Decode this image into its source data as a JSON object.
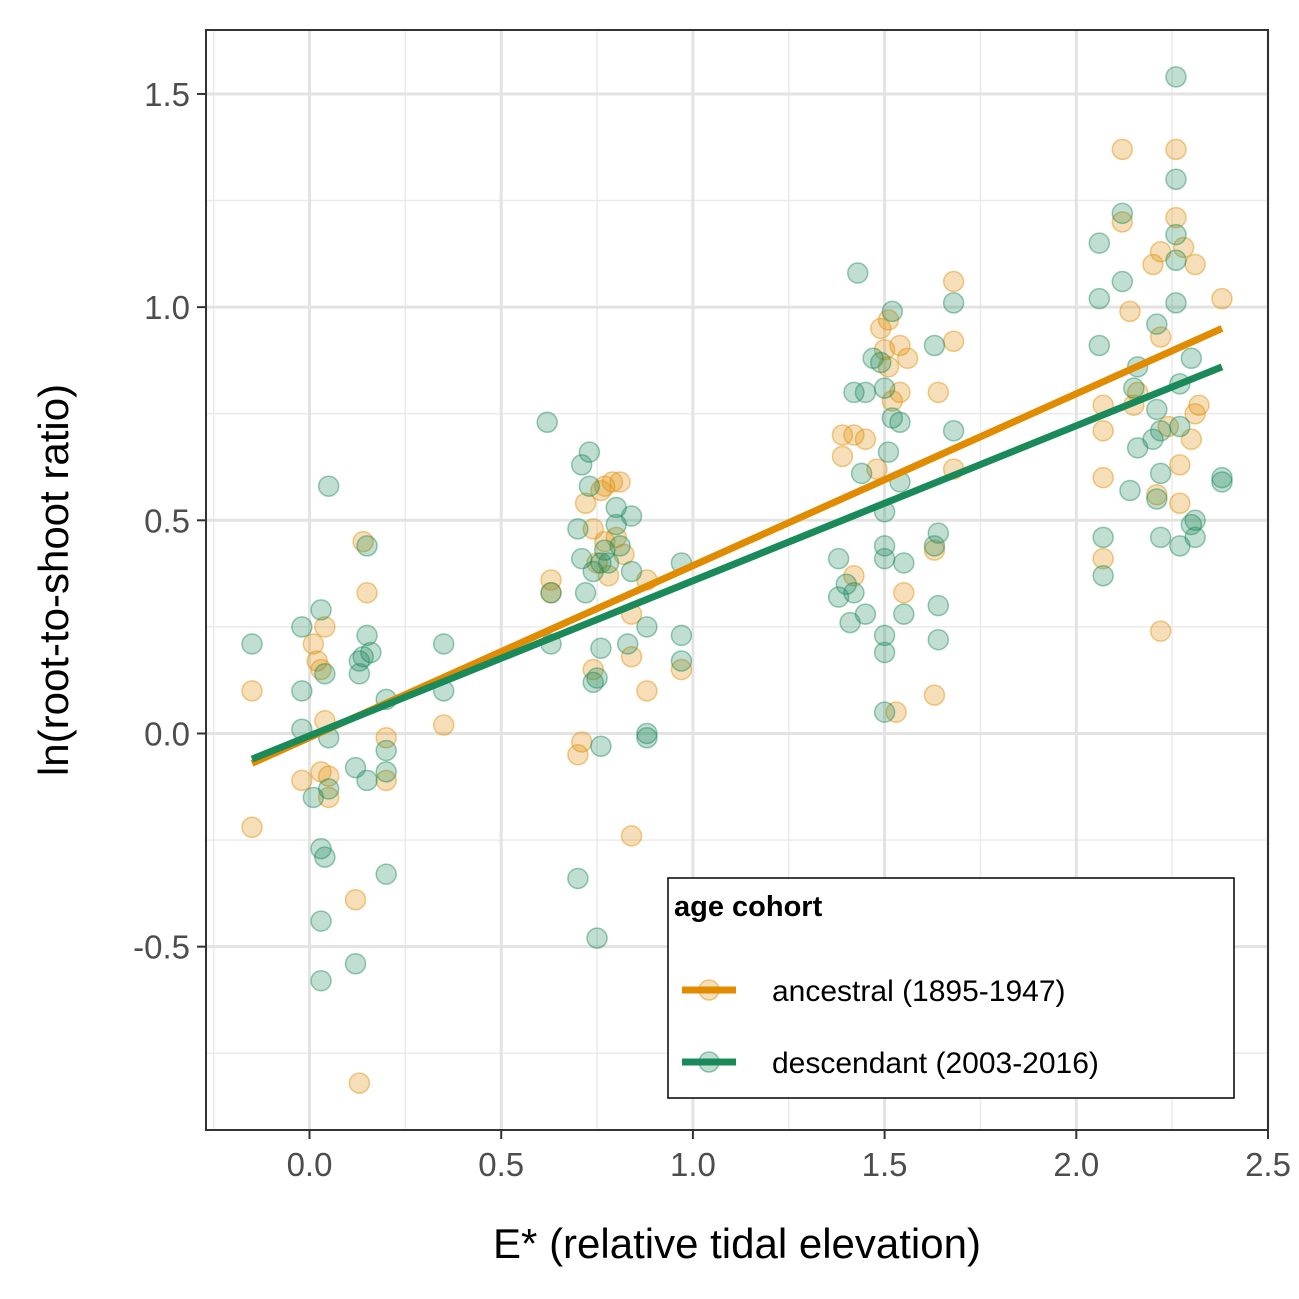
{
  "chart_data": {
    "type": "scatter",
    "title": "",
    "xlabel": "E* (relative tidal elevation)",
    "ylabel": "ln(root-to-shoot ratio)",
    "xlim": [
      -0.27,
      2.5
    ],
    "ylim": [
      -0.93,
      1.65
    ],
    "x_ticks": [
      0.0,
      0.5,
      1.0,
      1.5,
      2.0,
      2.5
    ],
    "x_tick_labels": [
      "0.0",
      "0.5",
      "1.0",
      "1.5",
      "2.0",
      "2.5"
    ],
    "y_ticks": [
      -0.5,
      0.0,
      0.5,
      1.0,
      1.5
    ],
    "y_tick_labels": [
      "-0.5",
      "0.0",
      "0.5",
      "1.0",
      "1.5"
    ],
    "grid": true,
    "legend": {
      "title": "age cohort",
      "position": "bottom-right"
    },
    "series": [
      {
        "name": "ancestral (1895-1947)",
        "color": "#E08B00",
        "fit_line": {
          "x": [
            -0.15,
            2.38
          ],
          "y": [
            -0.07,
            0.95
          ]
        },
        "points": [
          [
            -0.15,
            0.1
          ],
          [
            -0.15,
            -0.22
          ],
          [
            -0.02,
            -0.11
          ],
          [
            0.01,
            0.21
          ],
          [
            0.02,
            0.17
          ],
          [
            0.03,
            0.15
          ],
          [
            0.03,
            -0.09
          ],
          [
            0.04,
            0.03
          ],
          [
            0.04,
            0.25
          ],
          [
            0.05,
            -0.1
          ],
          [
            0.05,
            -0.15
          ],
          [
            0.12,
            -0.39
          ],
          [
            0.13,
            -0.82
          ],
          [
            0.14,
            0.45
          ],
          [
            0.15,
            0.33
          ],
          [
            0.2,
            -0.01
          ],
          [
            0.2,
            -0.11
          ],
          [
            0.35,
            0.02
          ],
          [
            0.63,
            0.33
          ],
          [
            0.63,
            0.36
          ],
          [
            0.7,
            -0.05
          ],
          [
            0.71,
            -0.02
          ],
          [
            0.72,
            0.54
          ],
          [
            0.74,
            0.48
          ],
          [
            0.74,
            0.15
          ],
          [
            0.75,
            0.4
          ],
          [
            0.76,
            0.57
          ],
          [
            0.77,
            0.58
          ],
          [
            0.77,
            0.45
          ],
          [
            0.78,
            0.37
          ],
          [
            0.79,
            0.59
          ],
          [
            0.8,
            0.46
          ],
          [
            0.81,
            0.59
          ],
          [
            0.82,
            0.42
          ],
          [
            0.84,
            0.28
          ],
          [
            0.84,
            -0.24
          ],
          [
            0.84,
            0.18
          ],
          [
            0.88,
            0.1
          ],
          [
            0.88,
            0.36
          ],
          [
            0.97,
            0.15
          ],
          [
            1.39,
            0.7
          ],
          [
            1.39,
            0.65
          ],
          [
            1.42,
            0.7
          ],
          [
            1.42,
            0.37
          ],
          [
            1.45,
            0.69
          ],
          [
            1.48,
            0.62
          ],
          [
            1.49,
            0.95
          ],
          [
            1.5,
            0.9
          ],
          [
            1.51,
            0.97
          ],
          [
            1.51,
            0.86
          ],
          [
            1.52,
            0.78
          ],
          [
            1.53,
            0.05
          ],
          [
            1.54,
            0.91
          ],
          [
            1.54,
            0.8
          ],
          [
            1.55,
            0.33
          ],
          [
            1.56,
            0.88
          ],
          [
            1.63,
            0.09
          ],
          [
            1.63,
            0.43
          ],
          [
            1.64,
            0.8
          ],
          [
            1.68,
            1.06
          ],
          [
            1.68,
            0.92
          ],
          [
            1.68,
            0.62
          ],
          [
            2.07,
            0.77
          ],
          [
            2.07,
            0.71
          ],
          [
            2.07,
            0.6
          ],
          [
            2.07,
            0.41
          ],
          [
            2.12,
            1.37
          ],
          [
            2.12,
            1.2
          ],
          [
            2.14,
            0.99
          ],
          [
            2.15,
            0.77
          ],
          [
            2.16,
            0.8
          ],
          [
            2.2,
            1.1
          ],
          [
            2.21,
            0.56
          ],
          [
            2.22,
            1.13
          ],
          [
            2.22,
            0.24
          ],
          [
            2.22,
            0.93
          ],
          [
            2.24,
            0.72
          ],
          [
            2.26,
            1.37
          ],
          [
            2.26,
            1.21
          ],
          [
            2.27,
            0.63
          ],
          [
            2.27,
            0.54
          ],
          [
            2.28,
            1.14
          ],
          [
            2.3,
            0.69
          ],
          [
            2.31,
            0.75
          ],
          [
            2.31,
            1.1
          ],
          [
            2.32,
            0.77
          ],
          [
            2.38,
            1.02
          ]
        ]
      },
      {
        "name": "descendant (2003-2016)",
        "color": "#1B8A5A",
        "fit_line": {
          "x": [
            -0.15,
            2.38
          ],
          "y": [
            -0.06,
            0.86
          ]
        },
        "points": [
          [
            -0.15,
            0.21
          ],
          [
            -0.02,
            0.25
          ],
          [
            -0.02,
            0.1
          ],
          [
            -0.02,
            0.01
          ],
          [
            0.01,
            -0.15
          ],
          [
            0.03,
            -0.27
          ],
          [
            0.03,
            -0.44
          ],
          [
            0.03,
            -0.58
          ],
          [
            0.03,
            0.29
          ],
          [
            0.04,
            -0.29
          ],
          [
            0.04,
            0.14
          ],
          [
            0.05,
            0.58
          ],
          [
            0.05,
            -0.01
          ],
          [
            0.05,
            -0.13
          ],
          [
            0.12,
            -0.08
          ],
          [
            0.12,
            -0.54
          ],
          [
            0.13,
            0.17
          ],
          [
            0.13,
            0.14
          ],
          [
            0.14,
            0.18
          ],
          [
            0.15,
            0.44
          ],
          [
            0.15,
            0.23
          ],
          [
            0.15,
            -0.11
          ],
          [
            0.16,
            0.19
          ],
          [
            0.2,
            0.08
          ],
          [
            0.2,
            -0.04
          ],
          [
            0.2,
            -0.09
          ],
          [
            0.2,
            -0.33
          ],
          [
            0.35,
            0.21
          ],
          [
            0.35,
            0.1
          ],
          [
            0.62,
            0.73
          ],
          [
            0.63,
            0.33
          ],
          [
            0.63,
            0.21
          ],
          [
            0.7,
            0.48
          ],
          [
            0.7,
            -0.34
          ],
          [
            0.71,
            0.41
          ],
          [
            0.71,
            0.63
          ],
          [
            0.72,
            0.33
          ],
          [
            0.73,
            0.66
          ],
          [
            0.73,
            0.58
          ],
          [
            0.74,
            0.38
          ],
          [
            0.74,
            0.12
          ],
          [
            0.75,
            0.13
          ],
          [
            0.75,
            -0.48
          ],
          [
            0.76,
            0.4
          ],
          [
            0.76,
            0.2
          ],
          [
            0.76,
            -0.03
          ],
          [
            0.77,
            0.43
          ],
          [
            0.78,
            0.4
          ],
          [
            0.8,
            0.49
          ],
          [
            0.8,
            0.53
          ],
          [
            0.81,
            0.44
          ],
          [
            0.83,
            0.21
          ],
          [
            0.84,
            0.51
          ],
          [
            0.84,
            0.38
          ],
          [
            0.88,
            0.25
          ],
          [
            0.88,
            0.0
          ],
          [
            0.88,
            -0.01
          ],
          [
            0.97,
            0.4
          ],
          [
            0.97,
            0.23
          ],
          [
            0.97,
            0.17
          ],
          [
            1.38,
            0.41
          ],
          [
            1.38,
            0.32
          ],
          [
            1.4,
            0.35
          ],
          [
            1.41,
            0.26
          ],
          [
            1.42,
            0.33
          ],
          [
            1.42,
            0.8
          ],
          [
            1.43,
            1.08
          ],
          [
            1.44,
            0.61
          ],
          [
            1.45,
            0.8
          ],
          [
            1.45,
            0.28
          ],
          [
            1.47,
            0.88
          ],
          [
            1.49,
            0.87
          ],
          [
            1.5,
            0.81
          ],
          [
            1.5,
            0.52
          ],
          [
            1.5,
            0.44
          ],
          [
            1.5,
            0.41
          ],
          [
            1.5,
            0.23
          ],
          [
            1.5,
            0.19
          ],
          [
            1.5,
            0.05
          ],
          [
            1.51,
            0.66
          ],
          [
            1.52,
            0.99
          ],
          [
            1.52,
            0.74
          ],
          [
            1.54,
            0.73
          ],
          [
            1.54,
            0.59
          ],
          [
            1.55,
            0.28
          ],
          [
            1.55,
            0.4
          ],
          [
            1.63,
            0.91
          ],
          [
            1.63,
            0.44
          ],
          [
            1.64,
            0.47
          ],
          [
            1.64,
            0.3
          ],
          [
            1.64,
            0.22
          ],
          [
            1.68,
            1.01
          ],
          [
            1.68,
            0.71
          ],
          [
            2.06,
            1.15
          ],
          [
            2.06,
            1.02
          ],
          [
            2.06,
            0.91
          ],
          [
            2.07,
            0.46
          ],
          [
            2.07,
            0.37
          ],
          [
            2.12,
            1.22
          ],
          [
            2.12,
            1.06
          ],
          [
            2.14,
            0.57
          ],
          [
            2.15,
            0.81
          ],
          [
            2.16,
            0.86
          ],
          [
            2.16,
            0.67
          ],
          [
            2.2,
            0.69
          ],
          [
            2.21,
            0.96
          ],
          [
            2.21,
            0.55
          ],
          [
            2.21,
            0.76
          ],
          [
            2.22,
            0.71
          ],
          [
            2.22,
            0.61
          ],
          [
            2.22,
            0.46
          ],
          [
            2.26,
            1.54
          ],
          [
            2.26,
            1.3
          ],
          [
            2.26,
            1.17
          ],
          [
            2.26,
            1.11
          ],
          [
            2.26,
            1.01
          ],
          [
            2.27,
            0.44
          ],
          [
            2.27,
            0.82
          ],
          [
            2.27,
            0.72
          ],
          [
            2.3,
            0.88
          ],
          [
            2.3,
            0.49
          ],
          [
            2.31,
            0.5
          ],
          [
            2.31,
            0.46
          ],
          [
            2.38,
            0.6
          ],
          [
            2.38,
            0.59
          ]
        ]
      }
    ]
  }
}
